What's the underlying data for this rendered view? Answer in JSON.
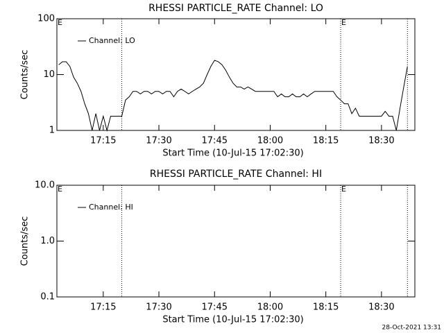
{
  "chart_data": [
    {
      "type": "line",
      "title": "RHESSI PARTICLE_RATE Channel: LO",
      "y_label": "Counts/sec",
      "x_label": "Start Time (10-Jul-15 17:02:30)",
      "log_y": true,
      "xlim": [
        "17:02:30",
        "18:39"
      ],
      "ylim": [
        1,
        100
      ],
      "yticks": [
        1,
        10,
        100
      ],
      "xticks": [
        "17:15",
        "17:30",
        "17:45",
        "18:00",
        "18:15",
        "18:30"
      ],
      "markers": [
        "17:20",
        "18:19",
        "18:37"
      ],
      "annotations": [
        {
          "text": "E",
          "x": "17:02:30"
        },
        {
          "text": "E",
          "x": "18:19"
        }
      ],
      "legend": "top-left",
      "x": [
        "17:03",
        "17:04",
        "17:05",
        "17:06",
        "17:07",
        "17:08",
        "17:09",
        "17:10",
        "17:11",
        "17:12",
        "17:13",
        "17:14",
        "17:15",
        "17:16",
        "17:17",
        "17:18",
        "17:19",
        "17:20",
        "17:21",
        "17:22",
        "17:23",
        "17:24",
        "17:25",
        "17:26",
        "17:27",
        "17:28",
        "17:29",
        "17:30",
        "17:31",
        "17:32",
        "17:33",
        "17:34",
        "17:35",
        "17:36",
        "17:37",
        "17:38",
        "17:39",
        "17:40",
        "17:41",
        "17:42",
        "17:43",
        "17:44",
        "17:45",
        "17:46",
        "17:47",
        "17:48",
        "17:49",
        "17:50",
        "17:51",
        "17:52",
        "17:53",
        "17:54",
        "17:55",
        "17:56",
        "17:57",
        "17:58",
        "17:59",
        "18:00",
        "18:01",
        "18:02",
        "18:03",
        "18:04",
        "18:05",
        "18:06",
        "18:07",
        "18:08",
        "18:09",
        "18:10",
        "18:11",
        "18:12",
        "18:13",
        "18:14",
        "18:15",
        "18:16",
        "18:17",
        "18:18",
        "18:19",
        "18:20",
        "18:21",
        "18:22",
        "18:23",
        "18:24",
        "18:25",
        "18:26",
        "18:27",
        "18:28",
        "18:29",
        "18:30",
        "18:31",
        "18:32",
        "18:33",
        "18:34",
        "18:35",
        "18:36",
        "18:37"
      ],
      "series": [
        {
          "name": "Channel: LO",
          "color": "#000000",
          "values": [
            15,
            17,
            17,
            14,
            9,
            7,
            5,
            3,
            2,
            1,
            2,
            1,
            1.8,
            1,
            1.8,
            1.8,
            1.8,
            1.8,
            3.5,
            4,
            5,
            5,
            4.5,
            5,
            5,
            4.5,
            5,
            5,
            4.5,
            5,
            5,
            4,
            5,
            5.5,
            5,
            4.5,
            5,
            5.5,
            6,
            7,
            10,
            14,
            18,
            17,
            15,
            12,
            9,
            7,
            6,
            6,
            5.5,
            6,
            5.5,
            5,
            5,
            5,
            5,
            5,
            5,
            4,
            4.5,
            4,
            4,
            4.5,
            4,
            4,
            4.5,
            4,
            4.5,
            5,
            5,
            5,
            5,
            5,
            5,
            4,
            3.5,
            3,
            3,
            2,
            2.5,
            1.8,
            1.8,
            1.8,
            1.8,
            1.8,
            1.8,
            1.8,
            2.2,
            1.8,
            1.8,
            1,
            2.5,
            6,
            14
          ]
        }
      ]
    },
    {
      "type": "line",
      "title": "RHESSI PARTICLE_RATE Channel: HI",
      "y_label": "Counts/sec",
      "x_label": "Start Time (10-Jul-15 17:02:30)",
      "log_y": true,
      "xlim": [
        "17:02:30",
        "18:39"
      ],
      "ylim": [
        0.1,
        10
      ],
      "yticks": [
        0.1,
        {
          "value": 1,
          "label": "1.0"
        },
        {
          "value": 10,
          "label": "10.0"
        }
      ],
      "xticks": [
        "17:15",
        "17:30",
        "17:45",
        "18:00",
        "18:15",
        "18:30"
      ],
      "markers": [
        "17:20",
        "18:19",
        "18:37"
      ],
      "annotations": [
        {
          "text": "E",
          "x": "17:02:30"
        },
        {
          "text": "E",
          "x": "18:19"
        }
      ],
      "legend": "top-left",
      "x": [],
      "series": [
        {
          "name": "Channel: HI",
          "color": "#000000",
          "values": []
        }
      ]
    }
  ],
  "footer": "28-Oct-2021 13:31"
}
